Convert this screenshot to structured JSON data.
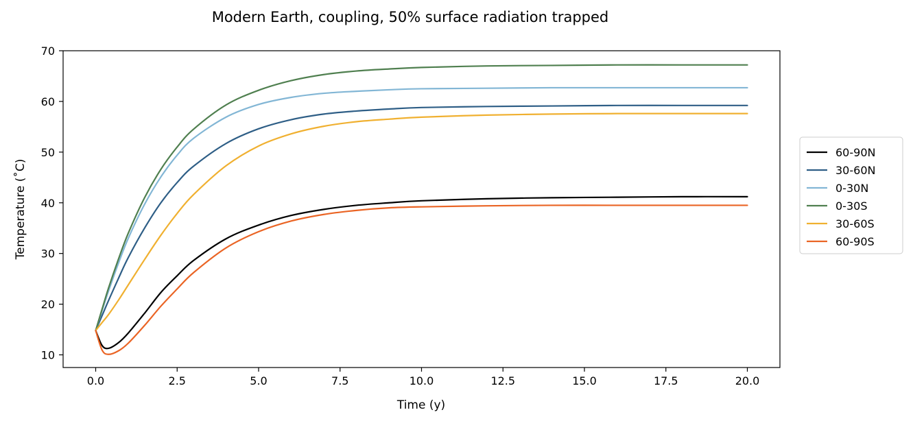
{
  "chart_data": {
    "type": "line",
    "title": "Modern Earth, coupling, 50% surface radiation trapped",
    "xlabel": "Time (y)",
    "ylabel": "Temperature (˚C)",
    "xlim": [
      -1.0,
      21.0
    ],
    "ylim": [
      7.5,
      70
    ],
    "xticks": [
      0.0,
      2.5,
      5.0,
      7.5,
      10.0,
      12.5,
      15.0,
      17.5,
      20.0
    ],
    "xtick_labels": [
      "0.0",
      "2.5",
      "5.0",
      "7.5",
      "10.0",
      "12.5",
      "15.0",
      "17.5",
      "20.0"
    ],
    "yticks": [
      10,
      20,
      30,
      40,
      50,
      60,
      70
    ],
    "ytick_labels": [
      "10",
      "20",
      "30",
      "40",
      "50",
      "60",
      "70"
    ],
    "grid": false,
    "legend_position": "outside-right",
    "x": [
      0,
      0.2,
      0.4,
      0.7,
      1.0,
      1.5,
      2.0,
      2.5,
      3.0,
      4.0,
      5.0,
      6.0,
      7.0,
      8.0,
      9.0,
      10.0,
      12.0,
      14.0,
      16.0,
      18.0,
      20.0
    ],
    "series": [
      {
        "name": "60-90N",
        "color": "#000000",
        "values": [
          14.8,
          11.8,
          11.3,
          12.4,
          14.3,
          18.2,
          22.3,
          25.6,
          28.6,
          32.9,
          35.6,
          37.5,
          38.7,
          39.5,
          40.0,
          40.4,
          40.8,
          41.0,
          41.1,
          41.2,
          41.2
        ]
      },
      {
        "name": "30-60N",
        "color": "#2e5e86",
        "values": [
          14.8,
          17.8,
          20.8,
          25.1,
          29.2,
          35.0,
          40.0,
          44.0,
          47.2,
          51.7,
          54.6,
          56.4,
          57.5,
          58.1,
          58.5,
          58.8,
          59.0,
          59.1,
          59.2,
          59.2,
          59.2
        ]
      },
      {
        "name": "0-30N",
        "color": "#82b6d5",
        "values": [
          14.8,
          18.8,
          22.7,
          28.1,
          33.0,
          39.7,
          45.1,
          49.4,
          52.7,
          56.9,
          59.4,
          60.8,
          61.6,
          62.0,
          62.3,
          62.5,
          62.6,
          62.7,
          62.7,
          62.7,
          62.7
        ]
      },
      {
        "name": "0-30S",
        "color": "#4f7f4f",
        "values": [
          14.8,
          19.1,
          23.3,
          28.9,
          34.0,
          41.0,
          46.6,
          51.0,
          54.5,
          59.3,
          62.2,
          64.1,
          65.3,
          66.0,
          66.4,
          66.7,
          67.0,
          67.1,
          67.2,
          67.2,
          67.2
        ]
      },
      {
        "name": "30-60S",
        "color": "#f0b030",
        "values": [
          14.8,
          16.4,
          18.0,
          20.8,
          23.8,
          28.8,
          33.6,
          37.9,
          41.6,
          47.3,
          51.2,
          53.6,
          55.1,
          56.0,
          56.5,
          56.9,
          57.3,
          57.5,
          57.6,
          57.6,
          57.6
        ]
      },
      {
        "name": "60-90S",
        "color": "#ea6424",
        "values": [
          14.8,
          10.9,
          10.1,
          10.8,
          12.3,
          15.8,
          19.6,
          23.0,
          26.2,
          31.1,
          34.3,
          36.4,
          37.7,
          38.5,
          39.0,
          39.2,
          39.4,
          39.5,
          39.5,
          39.5,
          39.5
        ]
      }
    ]
  }
}
